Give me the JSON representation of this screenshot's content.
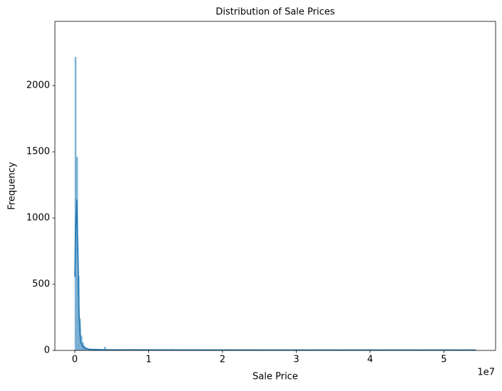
{
  "chart_data": {
    "type": "histogram",
    "title": "Distribution of Sale Prices",
    "x_label": "Sale Price",
    "y_label": "Frequency",
    "x_offset_label": "1e7",
    "color": "#1f77b4",
    "bins": [
      0,
      200000,
      400000,
      600000,
      800000,
      1000000,
      1200000,
      1400000,
      1600000,
      1800000,
      2000000,
      2200000,
      2400000,
      2600000,
      2800000,
      3000000,
      3200000,
      3400000,
      3600000,
      3800000,
      4000000,
      4200000,
      4400000,
      4600000,
      4800000,
      5000000,
      5200000,
      5400000,
      5600000,
      5800000,
      6000000,
      6200000,
      6400000,
      6600000,
      6800000,
      7000000,
      7200000,
      7400000,
      7600000,
      7800000,
      8000000,
      8200000,
      8400000,
      8600000,
      8800000,
      9000000,
      9200000,
      9400000,
      9600000,
      9800000,
      10000000,
      10200000,
      10400000,
      10600000,
      10800000,
      11000000,
      11200000,
      11400000,
      11600000,
      11800000,
      12000000,
      12200000,
      12400000,
      12600000,
      12800000,
      13000000,
      13200000,
      13400000,
      13600000,
      13800000,
      14000000,
      14200000,
      14400000,
      14600000,
      14800000,
      15000000,
      15200000,
      15400000,
      15600000,
      15800000,
      16000000,
      16200000,
      16400000,
      16600000,
      16800000,
      17000000,
      17200000,
      17400000,
      17600000,
      17800000,
      18000000,
      18200000,
      18400000,
      18600000,
      18800000,
      19000000,
      19200000,
      19400000,
      19600000,
      19800000,
      20000000,
      20200000,
      20400000,
      20600000,
      20800000,
      21000000,
      21200000,
      21400000,
      21600000,
      21800000,
      22000000,
      22200000,
      22400000,
      22600000,
      22800000,
      23000000,
      23200000,
      23400000,
      23600000,
      23800000,
      24000000,
      24200000,
      24400000,
      24600000,
      24800000,
      25000000,
      25200000,
      25400000,
      25600000,
      25800000,
      26000000,
      26200000,
      26400000,
      26600000,
      26800000,
      27000000,
      27200000,
      27400000,
      27600000,
      27800000,
      28000000,
      28200000,
      28400000,
      28600000,
      28800000,
      29000000,
      29200000,
      29400000,
      29600000,
      29800000,
      30000000,
      30200000,
      30400000,
      30600000,
      30800000,
      31000000,
      31200000,
      31400000,
      31600000,
      31800000,
      32000000,
      32200000,
      32400000,
      32600000,
      32800000,
      33000000,
      33200000,
      33400000,
      33600000,
      33800000,
      34000000,
      34200000,
      34400000,
      34600000,
      34800000,
      35000000,
      35200000,
      35400000,
      35600000,
      35800000,
      36000000,
      36200000,
      36400000,
      36600000,
      36800000,
      37000000,
      37200000,
      37400000,
      37600000,
      37800000,
      38000000,
      38200000,
      38400000,
      38600000,
      38800000,
      39000000,
      39200000,
      39400000,
      39600000,
      39800000,
      40000000,
      40200000,
      40400000,
      40600000,
      40800000,
      41000000,
      41200000,
      41400000,
      41600000,
      41800000,
      42000000,
      42200000,
      42400000,
      42600000,
      42800000,
      43000000,
      43200000,
      43400000,
      43600000,
      43800000,
      44000000,
      44200000,
      44400000,
      44600000,
      44800000,
      45000000,
      45200000,
      45400000,
      45600000,
      45800000,
      46000000,
      46200000,
      46400000,
      46600000,
      46800000,
      47000000,
      47200000,
      47400000,
      47600000,
      47800000,
      48000000,
      48200000,
      48400000,
      48600000,
      48800000,
      49000000,
      49200000,
      49400000,
      49600000,
      49800000,
      50000000,
      50200000,
      50400000,
      50600000,
      50800000,
      51000000,
      51200000,
      51400000,
      51600000,
      51800000,
      52000000,
      52200000,
      52400000,
      52600000,
      52800000,
      53000000,
      53200000,
      53400000,
      53600000,
      53800000,
      54000000,
      54200000,
      54400000
    ],
    "values": [
      2215,
      1460,
      560,
      240,
      110,
      60,
      35,
      22,
      15,
      10,
      6,
      5,
      4,
      3,
      3,
      2,
      2,
      1,
      1,
      2,
      25,
      2,
      1,
      1,
      0,
      1,
      0,
      1,
      0,
      1,
      0,
      1,
      0,
      0,
      1,
      0,
      0,
      0,
      1,
      0,
      0,
      0,
      1,
      0,
      0,
      0,
      0,
      1,
      0,
      0,
      0,
      0,
      0,
      1,
      0,
      0,
      0,
      0,
      0,
      0,
      0,
      0,
      1,
      0,
      0,
      8,
      1,
      0,
      0,
      0,
      0,
      0,
      0,
      0,
      1,
      0,
      0,
      0,
      0,
      0,
      0,
      0,
      0,
      0,
      0,
      0,
      1,
      0,
      0,
      0,
      0,
      0,
      0,
      0,
      0,
      0,
      0,
      0,
      0,
      1,
      0,
      0,
      0,
      0,
      0,
      0,
      0,
      0,
      0,
      0,
      0,
      0,
      0,
      0,
      0,
      1,
      0,
      0,
      0,
      0,
      0,
      0,
      0,
      0,
      0,
      0,
      0,
      0,
      0,
      0,
      0,
      0,
      1,
      0,
      0,
      0,
      0,
      0,
      0,
      0,
      0,
      0,
      0,
      0,
      0,
      0,
      0,
      0,
      0,
      0,
      0,
      0,
      0,
      0,
      0,
      0,
      0,
      1,
      0,
      0,
      0,
      0,
      0,
      0,
      0,
      0,
      0,
      0,
      0,
      0,
      0,
      0,
      0,
      0,
      0,
      0,
      0,
      0,
      0,
      0,
      0,
      1,
      0,
      0,
      0,
      0,
      0,
      0,
      0,
      0,
      0,
      0,
      0,
      0,
      0,
      0,
      0,
      0,
      0,
      0,
      0,
      0,
      0,
      0,
      0,
      0,
      1,
      0,
      0,
      0,
      0,
      0,
      0,
      0,
      0,
      0,
      0,
      0,
      0,
      0,
      0,
      0,
      0,
      0,
      0,
      0,
      0,
      0,
      0,
      0,
      0,
      0,
      0,
      1,
      0,
      0,
      0,
      0,
      0,
      0,
      0,
      0,
      0,
      0,
      0,
      0,
      0,
      0,
      0,
      0,
      0,
      0,
      0,
      0,
      0,
      0,
      0,
      0,
      1,
      0,
      0,
      0,
      0,
      0,
      0,
      0,
      0,
      0,
      0,
      0,
      0,
      1
    ],
    "kde": {
      "x": [
        0,
        100000,
        250000,
        400000,
        600000,
        800000,
        1200000,
        2000000,
        4000000,
        13000000,
        30000000,
        54300000
      ],
      "values": [
        555,
        900,
        1140,
        800,
        230,
        60,
        20,
        8,
        5,
        4,
        3,
        3
      ]
    },
    "xlim": [
      -2700000,
      57000000
    ],
    "xticks": [
      0,
      {
        "value": 10000000,
        "label": "1"
      },
      {
        "value": 20000000,
        "label": "2"
      },
      {
        "value": 30000000,
        "label": "3"
      },
      {
        "value": 40000000,
        "label": "4"
      },
      {
        "value": 50000000,
        "label": "5"
      }
    ],
    "ylim": [
      0,
      2485
    ],
    "yticks": [
      0,
      500,
      1000,
      1500,
      2000
    ]
  }
}
